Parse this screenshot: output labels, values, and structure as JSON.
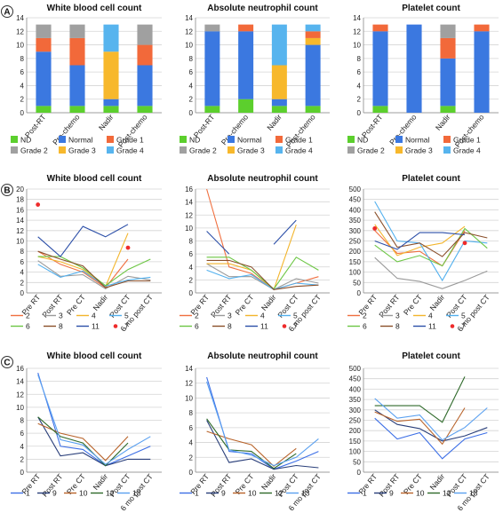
{
  "figure": {
    "row_labels": [
      "A",
      "B",
      "C"
    ]
  },
  "colors": {
    "ND": "#5ccf2d",
    "Normal": "#3b78e0",
    "Grade 1": "#f2693a",
    "Grade 2": "#a0a0a0",
    "Grade 3": "#f7b82c",
    "Grade 4": "#57b4ee",
    "p1": "#3d6fe6",
    "p2": "#f07040",
    "p3": "#9a9a9a",
    "p4": "#f3b52c",
    "p5": "#52b0ee",
    "p6": "#6cc644",
    "p7": "#ee2b2b",
    "p8": "#8a4f2a",
    "p9": "#2a3f7a",
    "p10": "#b8632a",
    "p11": "#2c4fa8",
    "p12": "#2f6a2a",
    "p13": "#5aa0f0"
  },
  "chart_data": [
    {
      "type": "bar",
      "stacked": true,
      "title": "White blood cell count",
      "categories": [
        "Post-RT",
        "Pre-chemo",
        "Nadir",
        "Post-chemo"
      ],
      "ylim": [
        0,
        14
      ],
      "yticks": [
        0,
        2,
        4,
        6,
        8,
        10,
        12,
        14
      ],
      "grid": true,
      "series": [
        {
          "name": "ND",
          "values": [
            1,
            1,
            1,
            1
          ]
        },
        {
          "name": "Normal",
          "values": [
            8,
            6,
            1,
            6
          ]
        },
        {
          "name": "Grade 3",
          "values": [
            0,
            0,
            7,
            0
          ]
        },
        {
          "name": "Grade 1",
          "values": [
            2,
            4,
            0,
            3
          ]
        },
        {
          "name": "Grade 4",
          "values": [
            0,
            0,
            4,
            0
          ]
        },
        {
          "name": "Grade 2",
          "values": [
            2,
            2,
            0,
            3
          ]
        }
      ],
      "legend": [
        "ND",
        "Normal",
        "Grade 1",
        "Grade 2",
        "Grade 3",
        "Grade 4"
      ],
      "legend_position": "bottom"
    },
    {
      "type": "bar",
      "stacked": true,
      "title": "Absolute neutrophil count",
      "categories": [
        "Post-RT",
        "Pre-chemo",
        "Nadir",
        "Post-chemo"
      ],
      "ylim": [
        0,
        14
      ],
      "yticks": [
        0,
        2,
        4,
        6,
        8,
        10,
        12,
        14
      ],
      "grid": true,
      "series": [
        {
          "name": "ND",
          "values": [
            1,
            2,
            1,
            1
          ]
        },
        {
          "name": "Normal",
          "values": [
            11,
            10,
            1,
            9
          ]
        },
        {
          "name": "Grade 3",
          "values": [
            0,
            0,
            5,
            1
          ]
        },
        {
          "name": "Grade 1",
          "values": [
            0,
            1,
            0,
            1
          ]
        },
        {
          "name": "Grade 4",
          "values": [
            0,
            0,
            6,
            1
          ]
        },
        {
          "name": "Grade 2",
          "values": [
            1,
            0,
            0,
            0
          ]
        }
      ],
      "legend": [
        "ND",
        "Normal",
        "Grade 1",
        "Grade 2",
        "Grade 3",
        "Grade 4"
      ],
      "legend_position": "bottom"
    },
    {
      "type": "bar",
      "stacked": true,
      "title": "Platelet count",
      "categories": [
        "Post-RT",
        "Pre-chemo",
        "Nadir",
        "Post-chemo"
      ],
      "ylim": [
        0,
        14
      ],
      "yticks": [
        0,
        2,
        4,
        6,
        8,
        10,
        12,
        14
      ],
      "grid": true,
      "series": [
        {
          "name": "ND",
          "values": [
            1,
            0,
            1,
            0
          ]
        },
        {
          "name": "Normal",
          "values": [
            11,
            13,
            7,
            12
          ]
        },
        {
          "name": "Grade 3",
          "values": [
            0,
            0,
            0,
            0
          ]
        },
        {
          "name": "Grade 1",
          "values": [
            1,
            0,
            3,
            1
          ]
        },
        {
          "name": "Grade 4",
          "values": [
            0,
            0,
            0,
            0
          ]
        },
        {
          "name": "Grade 2",
          "values": [
            0,
            0,
            2,
            0
          ]
        }
      ],
      "legend": [
        "ND",
        "Normal",
        "Grade 1",
        "Grade 2",
        "Grade 3",
        "Grade 4"
      ],
      "legend_position": "bottom"
    },
    {
      "type": "line",
      "title": "White blood cell count",
      "categories": [
        "Pre RT",
        "Post RT",
        "Pre CT",
        "Nadir",
        "Post CT",
        "6 mo post CT"
      ],
      "ylim": [
        0,
        20
      ],
      "yticks": [
        0,
        2,
        4,
        6,
        8,
        10,
        12,
        14,
        16,
        18,
        20
      ],
      "grid": true,
      "series": [
        {
          "name": "2",
          "values": [
            8,
            5.5,
            4,
            1,
            6.5,
            null
          ]
        },
        {
          "name": "3",
          "values": [
            6.2,
            3.2,
            3.5,
            0.8,
            3.2,
            2.5
          ]
        },
        {
          "name": "4",
          "values": [
            7,
            6,
            4.5,
            1.2,
            11.5,
            null
          ]
        },
        {
          "name": "5",
          "values": [
            5.5,
            3,
            4.2,
            1.3,
            2.5,
            3
          ]
        },
        {
          "name": "6",
          "values": [
            7,
            7,
            4.8,
            1.4,
            4.5,
            6.5
          ]
        },
        {
          "name": "7",
          "values": [
            17,
            null,
            null,
            null,
            8.7,
            null
          ],
          "marker": true
        },
        {
          "name": "8",
          "values": [
            8,
            6.5,
            5.2,
            1,
            2.3,
            2.3
          ]
        },
        {
          "name": "11",
          "values": [
            10.8,
            7,
            12.8,
            10.8,
            13.2,
            null
          ]
        }
      ],
      "legend": [
        "2",
        "3",
        "4",
        "5",
        "6",
        "8",
        "11",
        "7"
      ],
      "legend_position": "bottom"
    },
    {
      "type": "line",
      "title": "Absolute neutrophil count",
      "categories": [
        "Pre RT",
        "Post RT",
        "Pre CT",
        "Nadir",
        "Post CT",
        "6 mo post CT"
      ],
      "ylim": [
        0,
        16
      ],
      "yticks": [
        0,
        2,
        4,
        6,
        8,
        10,
        12,
        14,
        16
      ],
      "grid": true,
      "series": [
        {
          "name": "2",
          "values": [
            16,
            4,
            3,
            0.5,
            1.5,
            2.5
          ]
        },
        {
          "name": "3",
          "values": [
            4.5,
            2.5,
            2.5,
            0.5,
            2.2,
            1.5
          ]
        },
        {
          "name": "4",
          "values": [
            4.5,
            4.5,
            3.5,
            0.5,
            10.5,
            null
          ]
        },
        {
          "name": "5",
          "values": [
            3.5,
            2.2,
            2.8,
            0.5,
            1.5,
            1.2
          ]
        },
        {
          "name": "6",
          "values": [
            5.5,
            5.5,
            3.5,
            0.6,
            5.5,
            3.5
          ]
        },
        {
          "name": "7",
          "values": [
            null,
            null,
            null,
            null,
            null,
            null
          ],
          "marker": true
        },
        {
          "name": "8",
          "values": [
            5,
            5,
            4,
            0.5,
            1,
            1.2
          ]
        },
        {
          "name": "11",
          "values": [
            9.5,
            6,
            null,
            7.5,
            11.2,
            null
          ]
        }
      ],
      "legend": [
        "2",
        "3",
        "4",
        "5",
        "6",
        "8",
        "11",
        "7"
      ],
      "legend_position": "bottom"
    },
    {
      "type": "line",
      "title": "Platelet count",
      "categories": [
        "Pre RT",
        "Post RT",
        "Pre CT",
        "Nadir",
        "Post CT",
        "6 mo post CT"
      ],
      "ylim": [
        0,
        500
      ],
      "yticks": [
        0,
        50,
        100,
        150,
        200,
        250,
        300,
        350,
        400,
        450,
        500
      ],
      "grid": true,
      "series": [
        {
          "name": "2",
          "values": [
            300,
            190,
            200,
            130,
            300,
            null
          ]
        },
        {
          "name": "3",
          "values": [
            170,
            70,
            55,
            20,
            60,
            105
          ]
        },
        {
          "name": "4",
          "values": [
            330,
            180,
            220,
            240,
            320,
            null
          ]
        },
        {
          "name": "5",
          "values": [
            440,
            250,
            240,
            60,
            250,
            240
          ]
        },
        {
          "name": "6",
          "values": [
            230,
            150,
            180,
            130,
            310,
            215
          ]
        },
        {
          "name": "7",
          "values": [
            310,
            null,
            null,
            null,
            240,
            null
          ],
          "marker": true
        },
        {
          "name": "8",
          "values": [
            390,
            220,
            240,
            175,
            290,
            265
          ]
        },
        {
          "name": "11",
          "values": [
            250,
            210,
            290,
            290,
            280,
            null
          ]
        }
      ],
      "legend": [
        "2",
        "3",
        "4",
        "5",
        "6",
        "8",
        "11",
        "7"
      ],
      "legend_position": "bottom"
    },
    {
      "type": "line",
      "title": "White blood cell count",
      "categories": [
        "Pre RT",
        "Post RT",
        "Pre CT",
        "Nadir",
        "Post CT",
        "6 mo post CT"
      ],
      "ylim": [
        0,
        16
      ],
      "yticks": [
        0,
        2,
        4,
        6,
        8,
        10,
        12,
        14,
        16
      ],
      "grid": true,
      "series": [
        {
          "name": "1",
          "values": [
            15.3,
            4,
            3.5,
            1,
            2.5,
            4
          ]
        },
        {
          "name": "9",
          "values": [
            8.5,
            2.5,
            3,
            1,
            2,
            2
          ]
        },
        {
          "name": "10",
          "values": [
            7.5,
            6,
            5.2,
            1.8,
            5.5,
            null
          ]
        },
        {
          "name": "12",
          "values": [
            8.5,
            5.5,
            4.5,
            1,
            4.5,
            null
          ]
        },
        {
          "name": "13",
          "values": [
            15,
            5,
            4.2,
            1.2,
            3.5,
            5.5
          ]
        }
      ],
      "legend": [
        "1",
        "9",
        "10",
        "12",
        "13"
      ],
      "legend_position": "bottom"
    },
    {
      "type": "line",
      "title": "Absolute neutrophil count",
      "categories": [
        "Pre RT",
        "Post RT",
        "Pre CT",
        "Nadir",
        "Post CT",
        "6 mo post CT"
      ],
      "ylim": [
        0,
        14
      ],
      "yticks": [
        0,
        2,
        4,
        6,
        8,
        10,
        12,
        14
      ],
      "grid": true,
      "series": [
        {
          "name": "1",
          "values": [
            12.8,
            2.8,
            2.5,
            0.4,
            1.5,
            2.8
          ]
        },
        {
          "name": "9",
          "values": [
            7,
            1.3,
            1.8,
            0.4,
            0.9,
            0.6
          ]
        },
        {
          "name": "10",
          "values": [
            5.5,
            4.5,
            3.7,
            0.8,
            3.2,
            null
          ]
        },
        {
          "name": "12",
          "values": [
            7.2,
            3,
            2.8,
            0.5,
            2.5,
            null
          ]
        },
        {
          "name": "13",
          "values": [
            12.2,
            3,
            2.3,
            0.9,
            2,
            4.5
          ]
        }
      ],
      "legend": [
        "1",
        "9",
        "10",
        "12",
        "13"
      ],
      "legend_position": "bottom"
    },
    {
      "type": "line",
      "title": "Platelet count",
      "categories": [
        "Pre RT",
        "Post RT",
        "Pre CT",
        "Nadir",
        "Post CT",
        "6 mo post CT"
      ],
      "ylim": [
        0,
        500
      ],
      "yticks": [
        0,
        50,
        100,
        150,
        200,
        250,
        300,
        350,
        400,
        450,
        500
      ],
      "grid": true,
      "series": [
        {
          "name": "1",
          "values": [
            260,
            160,
            190,
            65,
            160,
            190
          ]
        },
        {
          "name": "9",
          "values": [
            300,
            230,
            210,
            150,
            175,
            215
          ]
        },
        {
          "name": "10",
          "values": [
            290,
            245,
            255,
            135,
            310,
            null
          ]
        },
        {
          "name": "12",
          "values": [
            320,
            320,
            320,
            240,
            460,
            null
          ]
        },
        {
          "name": "13",
          "values": [
            355,
            260,
            275,
            155,
            215,
            310
          ]
        }
      ],
      "legend": [
        "1",
        "9",
        "10",
        "12",
        "13"
      ],
      "legend_position": "bottom"
    }
  ]
}
